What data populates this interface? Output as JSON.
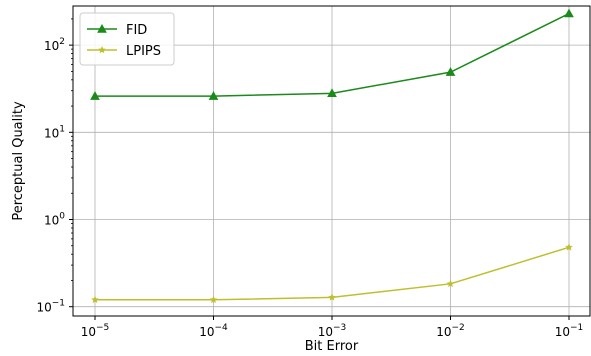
{
  "chart_data": {
    "type": "line",
    "xlabel": "Bit Error",
    "ylabel": "Perceptual Quality",
    "x_scale": "log",
    "y_scale": "log",
    "x": [
      1e-05,
      0.0001,
      0.001,
      0.01,
      0.1
    ],
    "x_tick_labels": [
      {
        "base": "10",
        "exp": "−5"
      },
      {
        "base": "10",
        "exp": "−4"
      },
      {
        "base": "10",
        "exp": "−3"
      },
      {
        "base": "10",
        "exp": "−2"
      },
      {
        "base": "10",
        "exp": "−1"
      }
    ],
    "y_tick_labels": [
      {
        "value": 0.1,
        "base": "10",
        "exp": "−1"
      },
      {
        "value": 1,
        "base": "10",
        "exp": "0"
      },
      {
        "value": 10,
        "base": "10",
        "exp": "1"
      },
      {
        "value": 100,
        "base": "10",
        "exp": "2"
      }
    ],
    "series": [
      {
        "name": "FID",
        "color": "#1a8a1a",
        "marker": "triangle",
        "values": [
          26,
          26,
          28,
          49,
          230
        ]
      },
      {
        "name": "LPIPS",
        "color": "#bfbf2e",
        "marker": "star",
        "values": [
          0.12,
          0.12,
          0.128,
          0.183,
          0.48
        ]
      }
    ],
    "grid": true,
    "legend": "top-left"
  }
}
